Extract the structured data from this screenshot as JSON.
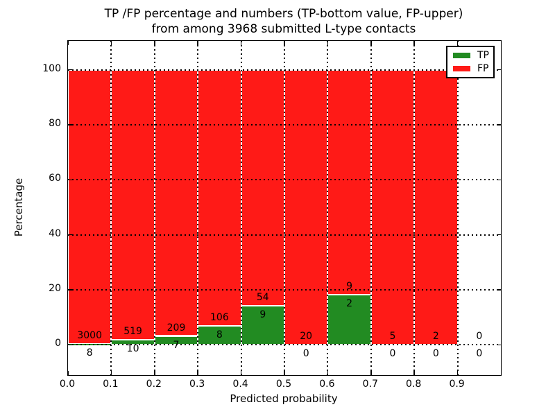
{
  "title": {
    "line1": "TP /FP percentage and numbers (TP-bottom value, FP-upper)",
    "line2": "from among 3968 submitted L-type contacts"
  },
  "axes": {
    "xlabel": "Predicted probability",
    "ylabel": "Percentage",
    "x_tick_labels": [
      "0.0",
      "0.1",
      "0.2",
      "0.3",
      "0.4",
      "0.5",
      "0.6",
      "0.7",
      "0.8",
      "0.9"
    ],
    "y_tick_labels": [
      "0",
      "20",
      "40",
      "60",
      "80",
      "100"
    ]
  },
  "legend": {
    "entries": [
      {
        "label": "TP",
        "color": "#228b22"
      },
      {
        "label": "FP",
        "color": "#ff1a17"
      }
    ],
    "position": "upper right"
  },
  "colors": {
    "tp_green": "#228b22",
    "fp_red": "#ff1a17",
    "grid": "#000000",
    "background": "#ffffff"
  },
  "chart_data": {
    "type": "bar",
    "stacked": true,
    "unit": "percent_of_bin",
    "title": "TP /FP percentage and numbers (TP-bottom value, FP-upper) from among 3968 submitted L-type contacts",
    "xlabel": "Predicted probability",
    "ylabel": "Percentage",
    "total_contacts": 3968,
    "bins": [
      [
        0.0,
        0.1
      ],
      [
        0.1,
        0.2
      ],
      [
        0.2,
        0.3
      ],
      [
        0.3,
        0.4
      ],
      [
        0.4,
        0.5
      ],
      [
        0.5,
        0.6
      ],
      [
        0.6,
        0.7
      ],
      [
        0.7,
        0.8
      ],
      [
        0.8,
        0.9
      ],
      [
        0.9,
        1.0
      ]
    ],
    "series": [
      {
        "name": "TP",
        "color": "#228b22",
        "counts": [
          8,
          10,
          7,
          8,
          9,
          0,
          2,
          0,
          0,
          0
        ]
      },
      {
        "name": "FP",
        "color": "#ff1a17",
        "counts": [
          3000,
          519,
          209,
          106,
          54,
          20,
          9,
          5,
          2,
          0
        ]
      }
    ],
    "bar_value_labels": {
      "bottom_series": "TP",
      "upper_series": "FP"
    },
    "x_tick_values": [
      0,
      0.1,
      0.2,
      0.3,
      0.4,
      0.5,
      0.6,
      0.7,
      0.8,
      0.9
    ],
    "y_tick_values": [
      0,
      20,
      40,
      60,
      80,
      100
    ],
    "xlim": [
      0,
      1.0
    ],
    "ylim": [
      -11,
      110.5
    ],
    "grid": true,
    "grid_style": "dotted",
    "legend_position": "upper right"
  }
}
